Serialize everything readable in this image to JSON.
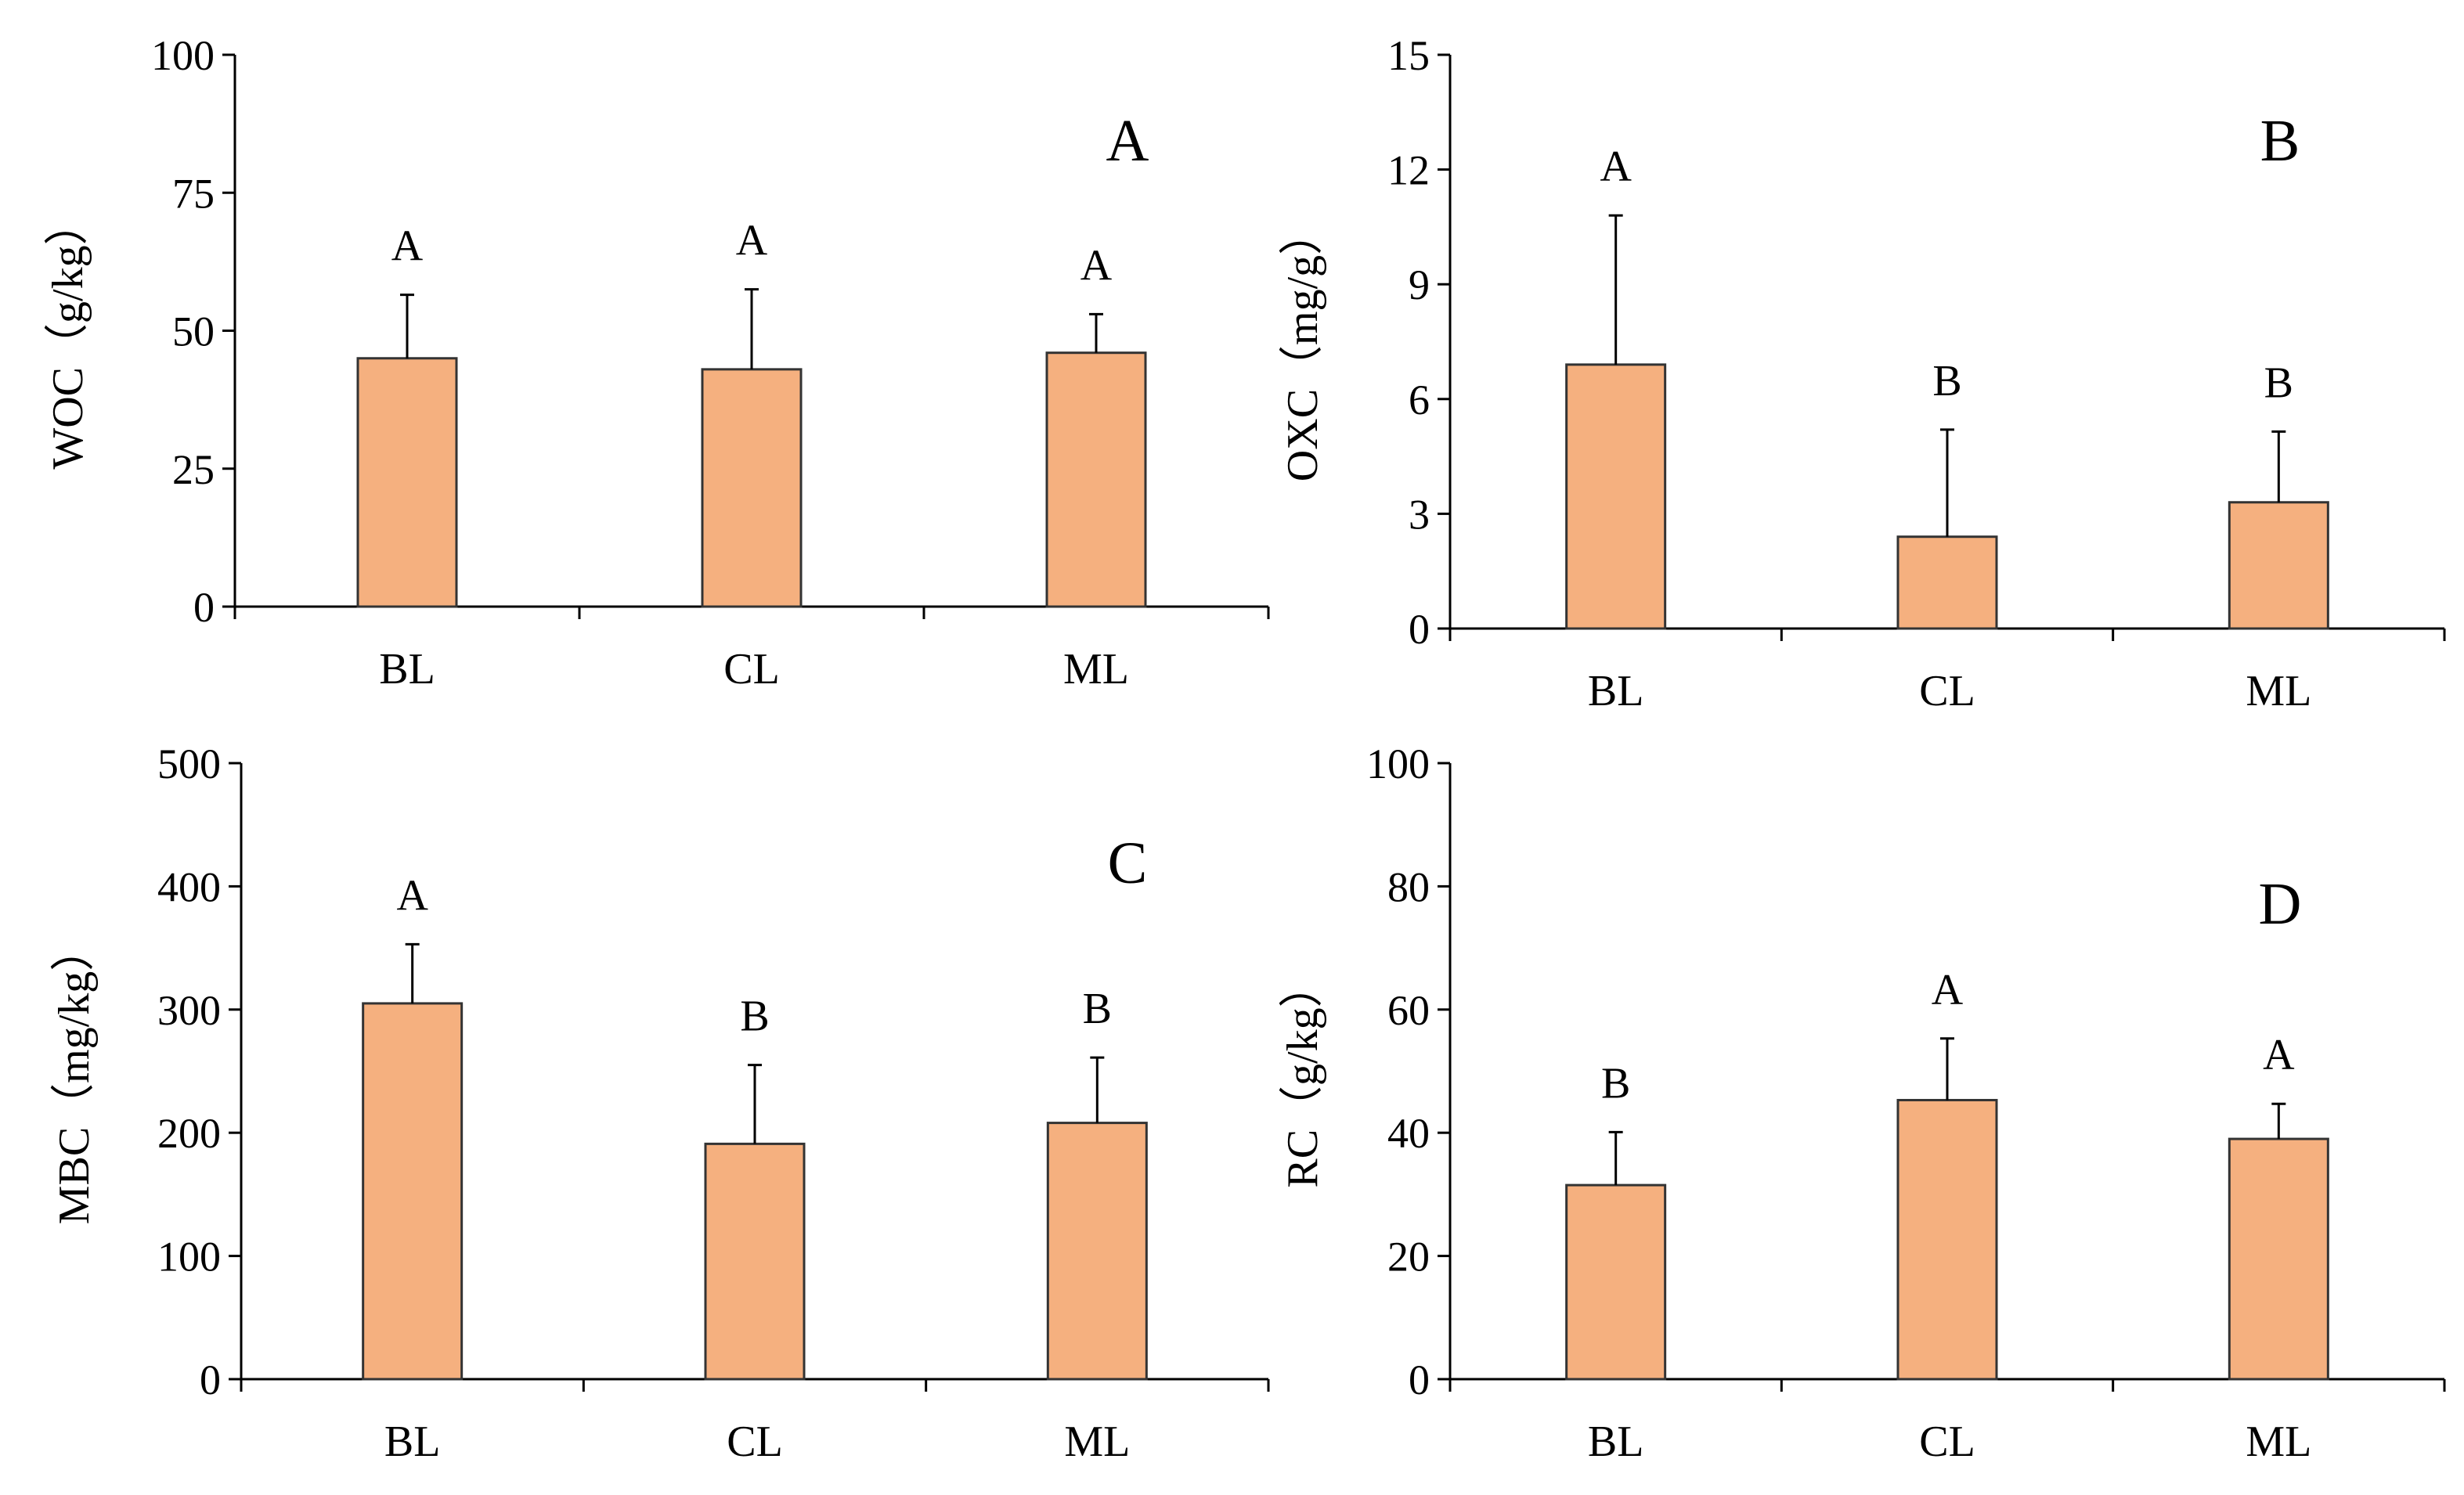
{
  "colors": {
    "bar_fill": "#f5b07f",
    "bar_stroke": "#333333",
    "axis": "#000000",
    "error_bar": "#000000"
  },
  "chart_data": [
    {
      "id": "A",
      "type": "bar",
      "panel_label": "A",
      "ylabel": "WOC（g/kg）",
      "categories": [
        "BL",
        "CL",
        "ML"
      ],
      "values": [
        45,
        43,
        46
      ],
      "errors": [
        11.5,
        14.5,
        7
      ],
      "significance": [
        "A",
        "A",
        "A"
      ],
      "ylim": [
        0,
        100
      ],
      "yticks": [
        "0",
        "25",
        "50",
        "75",
        "100"
      ]
    },
    {
      "id": "B",
      "type": "bar",
      "panel_label": "B",
      "ylabel": "OXC（mg/g）",
      "categories": [
        "BL",
        "CL",
        "ML"
      ],
      "values": [
        6.9,
        2.4,
        3.3
      ],
      "errors": [
        3.9,
        2.8,
        1.85
      ],
      "significance": [
        "A",
        "B",
        "B"
      ],
      "ylim": [
        0,
        15
      ],
      "yticks": [
        "0",
        "3",
        "6",
        "9",
        "12",
        "15"
      ]
    },
    {
      "id": "C",
      "type": "bar",
      "panel_label": "C",
      "ylabel": "MBC（mg/kg）",
      "categories": [
        "BL",
        "CL",
        "ML"
      ],
      "values": [
        305,
        191,
        208
      ],
      "errors": [
        48,
        64,
        53
      ],
      "significance": [
        "A",
        "B",
        "B"
      ],
      "ylim": [
        0,
        500
      ],
      "yticks": [
        "0",
        "100",
        "200",
        "300",
        "400",
        "500"
      ]
    },
    {
      "id": "D",
      "type": "bar",
      "panel_label": "D",
      "ylabel": "RC（g/kg）",
      "categories": [
        "BL",
        "CL",
        "ML"
      ],
      "values": [
        31.5,
        45.3,
        39
      ],
      "errors": [
        8.6,
        10,
        5.7
      ],
      "significance": [
        "B",
        "A",
        "A"
      ],
      "ylim": [
        0,
        100
      ],
      "yticks": [
        "0",
        "20",
        "40",
        "60",
        "80",
        "100"
      ]
    }
  ]
}
